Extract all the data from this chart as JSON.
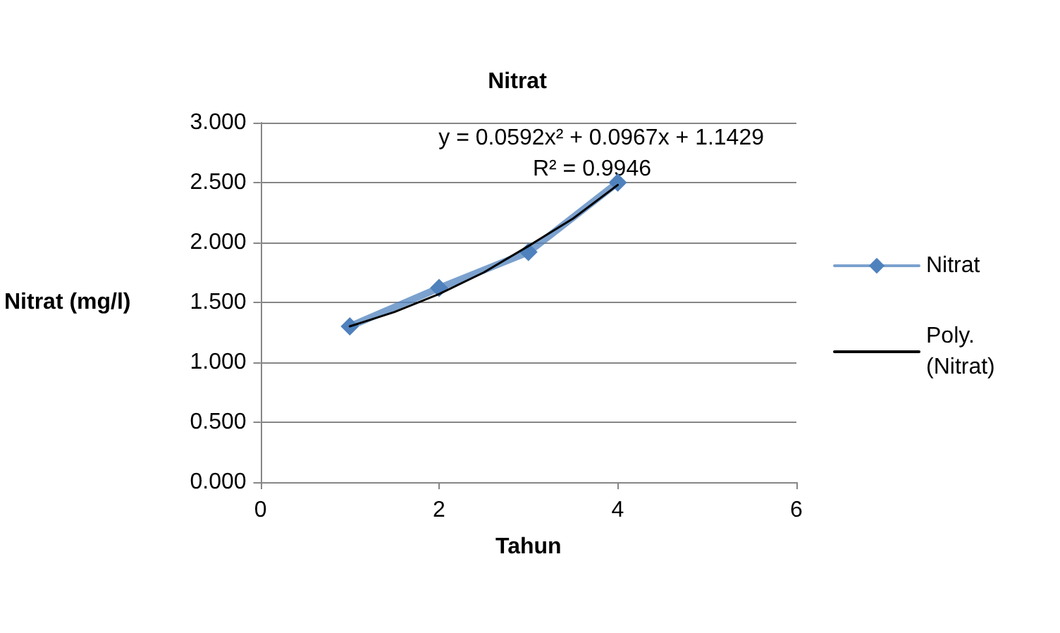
{
  "chart_data": {
    "type": "line",
    "title": "Nitrat",
    "xlabel": "Tahun",
    "ylabel": "Nitrat (mg/l)",
    "annotations": [
      "y = 0.0592x² + 0.0967x + 1.1429",
      "R² = 0.9946"
    ],
    "series": [
      {
        "name": "Nitrat",
        "color": "#4f81bd",
        "x": [
          1,
          2,
          3,
          4
        ],
        "values": [
          1.3,
          1.62,
          1.92,
          2.5
        ],
        "marker": "diamond"
      },
      {
        "name": "Poly. (Nitrat)",
        "color": "#000000",
        "x": [
          1,
          1.5,
          2,
          2.5,
          3,
          3.5,
          4
        ],
        "values": [
          1.3,
          1.42,
          1.57,
          1.75,
          1.97,
          2.2,
          2.48
        ],
        "marker": "none"
      }
    ],
    "xlim": [
      0,
      6
    ],
    "xticks": [
      0,
      2,
      4,
      6
    ],
    "ylim": [
      0,
      3
    ],
    "yticks": [
      {
        "value": 0,
        "label": "0.000"
      },
      {
        "value": 0.5,
        "label": "0.500"
      },
      {
        "value": 1,
        "label": "1.000"
      },
      {
        "value": 1.5,
        "label": "1.500"
      },
      {
        "value": 2,
        "label": "2.000"
      },
      {
        "value": 2.5,
        "label": "2.500"
      },
      {
        "value": 3,
        "label": "3.000"
      }
    ],
    "grid": "y",
    "legend": "right",
    "line_style": "solid"
  }
}
